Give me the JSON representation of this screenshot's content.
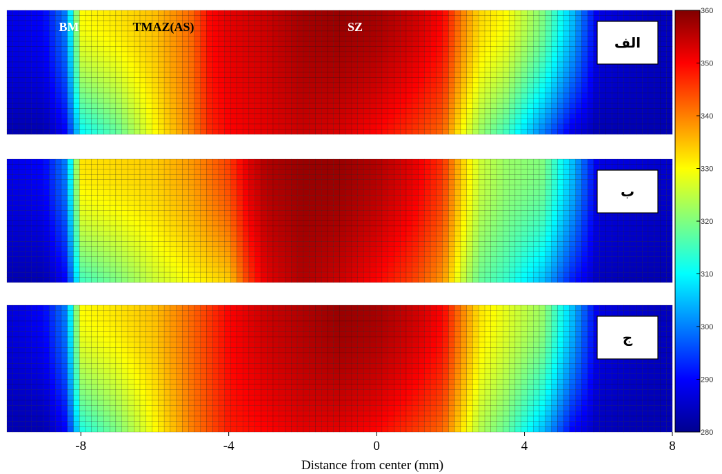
{
  "chart_data": {
    "type": "heatmap",
    "xlabel": "Distance from center (mm)",
    "x_ticks": [
      "-8",
      "-4",
      "0",
      "4",
      "8"
    ],
    "xlim": [
      -10,
      8
    ],
    "colorbar": {
      "min": 280,
      "max": 360,
      "ticks": [
        "280",
        "290",
        "300",
        "310",
        "320",
        "330",
        "340",
        "350",
        "360"
      ],
      "colormap": "jet"
    },
    "zone_labels": [
      {
        "text": "BM",
        "color": "#ffffff"
      },
      {
        "text": "TMAZ(AS)",
        "color": "#000000"
      },
      {
        "text": "SZ",
        "color": "#ffffff"
      }
    ],
    "panels": [
      {
        "label": "الف",
        "profile": {
          "x": [
            -10,
            -9,
            -8.4,
            -8,
            -7,
            -6,
            -5,
            -4.5,
            -4,
            -3,
            -2,
            -1,
            0,
            1,
            1.8,
            2.3,
            2.8,
            3.5,
            4.5,
            5.3,
            6,
            7,
            8
          ],
          "top": [
            288,
            290,
            300,
            330,
            332,
            335,
            342,
            350,
            352,
            354,
            357,
            358,
            357,
            354,
            350,
            340,
            333,
            330,
            320,
            305,
            288,
            286,
            285
          ],
          "bottom": [
            284,
            284,
            290,
            310,
            318,
            330,
            340,
            347,
            350,
            352,
            354,
            353,
            350,
            346,
            342,
            330,
            322,
            315,
            300,
            288,
            284,
            284,
            284
          ]
        }
      },
      {
        "label": "ب",
        "profile": {
          "x": [
            -10,
            -9,
            -8.4,
            -8,
            -7,
            -6,
            -5,
            -4,
            -3.5,
            -3,
            -2,
            -1,
            0,
            1,
            1.8,
            2.3,
            2.8,
            3.5,
            4.5,
            5.3,
            6,
            7,
            8
          ],
          "top": [
            288,
            290,
            300,
            332,
            333,
            334,
            338,
            345,
            352,
            356,
            358,
            358,
            356,
            352,
            346,
            334,
            326,
            322,
            320,
            305,
            288,
            287,
            286
          ],
          "bottom": [
            284,
            284,
            290,
            315,
            320,
            326,
            330,
            334,
            345,
            352,
            356,
            354,
            350,
            345,
            338,
            326,
            318,
            314,
            305,
            292,
            285,
            284,
            284
          ]
        }
      },
      {
        "label": "ج",
        "profile": {
          "x": [
            -10,
            -9,
            -8.4,
            -8,
            -7,
            -6,
            -5,
            -4,
            -3,
            -2,
            -1,
            0,
            1,
            1.8,
            2.3,
            2.8,
            3.5,
            4.5,
            5.3,
            6,
            7,
            8
          ],
          "top": [
            287,
            290,
            300,
            330,
            332,
            335,
            342,
            350,
            354,
            356,
            358,
            357,
            354,
            350,
            340,
            332,
            328,
            322,
            305,
            288,
            286,
            285
          ],
          "bottom": [
            284,
            284,
            290,
            312,
            320,
            330,
            340,
            348,
            350,
            352,
            352,
            350,
            346,
            342,
            332,
            324,
            318,
            305,
            290,
            285,
            284,
            284
          ]
        }
      }
    ]
  }
}
